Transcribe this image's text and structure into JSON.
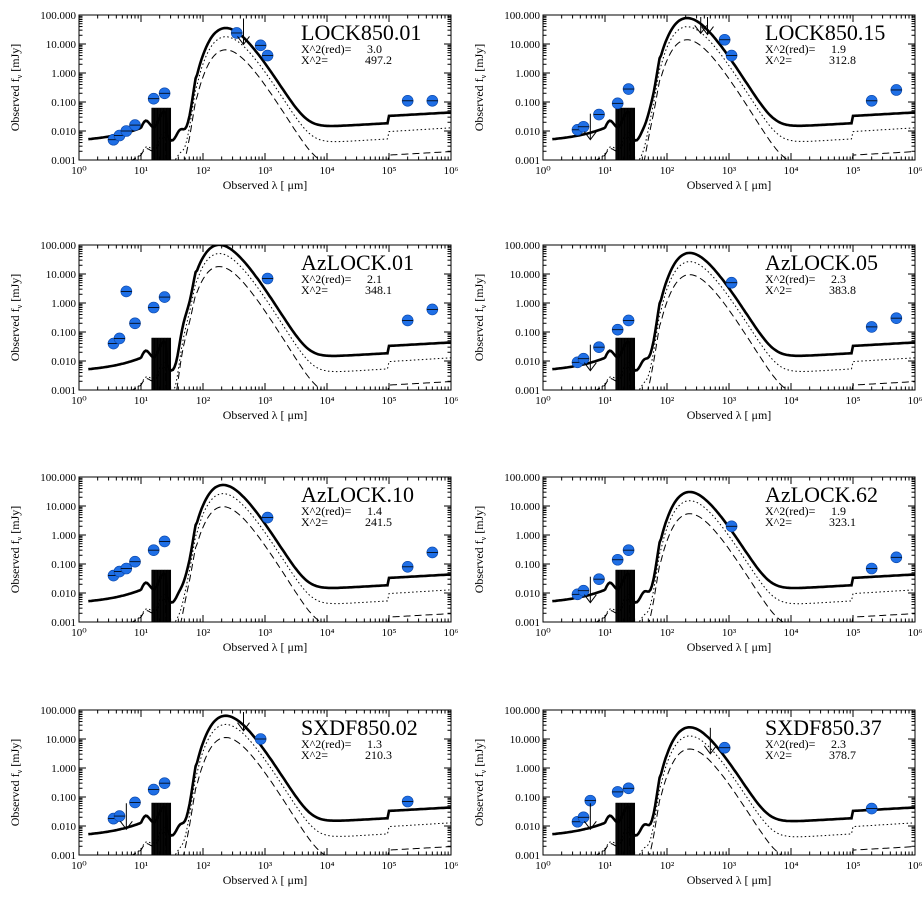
{
  "figure": {
    "xlabel_text": "Observed  λ [ μm]",
    "ylabel_text": "Observed f",
    "ylabel_sub": "ν",
    "ylabel_unit": " [mJy]",
    "chi_red_prefix": "X^2(red)=",
    "chi_prefix": "X^2=",
    "x_tick_labels": [
      "10⁰",
      "10¹",
      "10²",
      "10³",
      "10⁴",
      "10⁵",
      "10⁶"
    ],
    "y_tick_labels": [
      "0.001",
      "0.010",
      "0.100",
      "1.000",
      "10.000",
      "100.000"
    ],
    "point_color": "#1f6fe6"
  },
  "chart_data": [
    {
      "type": "line",
      "title": "LOCK850.01",
      "chi2_red": "3.0",
      "chi2": "497.2",
      "xscale": "log",
      "yscale": "log",
      "xlim": [
        1,
        1000000
      ],
      "ylim": [
        0.001,
        100
      ],
      "xlabel": "Observed λ [μm]",
      "ylabel": "Observed f_ν [mJy]",
      "peak": 28,
      "peak_lambda": 330,
      "series": [
        {
          "values": [
            [
              3.6,
              0.005
            ],
            [
              4.5,
              0.007
            ],
            [
              5.8,
              0.01
            ],
            [
              8,
              0.016
            ],
            [
              16,
              0.13
            ],
            [
              24,
              0.2
            ],
            [
              350,
              24
            ],
            [
              850,
              9
            ],
            [
              1100,
              4
            ],
            [
              200000,
              0.11
            ],
            [
              500000,
              0.11
            ]
          ]
        }
      ],
      "upper_limits": [
        [
          450,
          25
        ]
      ]
    },
    {
      "type": "line",
      "title": "LOCK850.15",
      "chi2_red": "1.9",
      "chi2": "312.8",
      "xscale": "log",
      "yscale": "log",
      "xlim": [
        1,
        1000000
      ],
      "ylim": [
        0.001,
        100
      ],
      "xlabel": "Observed λ [μm]",
      "ylabel": "Observed f_ν [mJy]",
      "peak": 62,
      "peak_lambda": 300,
      "series": [
        {
          "values": [
            [
              3.6,
              0.011
            ],
            [
              4.5,
              0.014
            ],
            [
              8,
              0.037
            ],
            [
              16,
              0.09
            ],
            [
              24,
              0.28
            ],
            [
              850,
              14
            ],
            [
              1100,
              4
            ],
            [
              200000,
              0.11
            ],
            [
              500000,
              0.26
            ]
          ]
        }
      ],
      "upper_limits": [
        [
          5.8,
          0.013
        ],
        [
          350,
          60
        ],
        [
          450,
          55
        ]
      ]
    },
    {
      "type": "line",
      "title": "AzLOCK.01",
      "chi2_red": "2.1",
      "chi2": "348.1",
      "xscale": "log",
      "yscale": "log",
      "xlim": [
        1,
        1000000
      ],
      "ylim": [
        0.001,
        100
      ],
      "xlabel": "Observed λ [μm]",
      "ylabel": "Observed f_ν [mJy]",
      "peak": 80,
      "peak_lambda": 260,
      "series": [
        {
          "values": [
            [
              3.6,
              0.04
            ],
            [
              4.5,
              0.06
            ],
            [
              5.8,
              2.5
            ],
            [
              8,
              0.2
            ],
            [
              16,
              0.7
            ],
            [
              24,
              1.6
            ],
            [
              1100,
              7
            ],
            [
              200000,
              0.25
            ],
            [
              500000,
              0.6
            ]
          ]
        }
      ],
      "upper_limits": []
    },
    {
      "type": "line",
      "title": "AzLOCK.05",
      "chi2_red": "2.3",
      "chi2": "383.8",
      "xscale": "log",
      "yscale": "log",
      "xlim": [
        1,
        1000000
      ],
      "ylim": [
        0.001,
        100
      ],
      "xlabel": "Observed λ [μm]",
      "ylabel": "Observed f_ν [mJy]",
      "peak": 42,
      "peak_lambda": 330,
      "series": [
        {
          "values": [
            [
              3.6,
              0.009
            ],
            [
              4.5,
              0.012
            ],
            [
              8,
              0.03
            ],
            [
              16,
              0.12
            ],
            [
              24,
              0.25
            ],
            [
              1100,
              5
            ],
            [
              200000,
              0.15
            ],
            [
              500000,
              0.3
            ]
          ]
        }
      ],
      "upper_limits": [
        [
          5.8,
          0.012
        ]
      ]
    },
    {
      "type": "line",
      "title": "AzLOCK.10",
      "chi2_red": "1.4",
      "chi2": "241.5",
      "xscale": "log",
      "yscale": "log",
      "xlim": [
        1,
        1000000
      ],
      "ylim": [
        0.001,
        100
      ],
      "xlabel": "Observed λ [μm]",
      "ylabel": "Observed f_ν [mJy]",
      "peak": 42,
      "peak_lambda": 300,
      "series": [
        {
          "values": [
            [
              3.6,
              0.04
            ],
            [
              4.5,
              0.055
            ],
            [
              5.8,
              0.07
            ],
            [
              8,
              0.12
            ],
            [
              16,
              0.3
            ],
            [
              24,
              0.6
            ],
            [
              1100,
              4
            ],
            [
              200000,
              0.08
            ],
            [
              500000,
              0.25
            ]
          ]
        }
      ],
      "upper_limits": []
    },
    {
      "type": "line",
      "title": "AzLOCK.62",
      "chi2_red": "1.9",
      "chi2": "323.1",
      "xscale": "log",
      "yscale": "log",
      "xlim": [
        1,
        1000000
      ],
      "ylim": [
        0.001,
        100
      ],
      "xlabel": "Observed λ [μm]",
      "ylabel": "Observed f_ν [mJy]",
      "peak": 24,
      "peak_lambda": 330,
      "series": [
        {
          "values": [
            [
              3.6,
              0.009
            ],
            [
              4.5,
              0.012
            ],
            [
              8,
              0.03
            ],
            [
              16,
              0.14
            ],
            [
              24,
              0.3
            ],
            [
              1100,
              2
            ],
            [
              200000,
              0.07
            ],
            [
              500000,
              0.17
            ]
          ]
        }
      ],
      "upper_limits": [
        [
          5.8,
          0.012
        ]
      ]
    },
    {
      "type": "line",
      "title": "SXDF850.02",
      "chi2_red": "1.3",
      "chi2": "210.3",
      "xscale": "log",
      "yscale": "log",
      "xlim": [
        1,
        1000000
      ],
      "ylim": [
        0.001,
        100
      ],
      "xlabel": "Observed λ [μm]",
      "ylabel": "Observed f_ν [mJy]",
      "peak": 50,
      "peak_lambda": 330,
      "series": [
        {
          "values": [
            [
              3.6,
              0.018
            ],
            [
              4.5,
              0.022
            ],
            [
              8,
              0.065
            ],
            [
              16,
              0.18
            ],
            [
              24,
              0.3
            ],
            [
              850,
              10
            ],
            [
              200000,
              0.07
            ]
          ]
        }
      ],
      "upper_limits": [
        [
          5.8,
          0.02
        ],
        [
          450,
          50
        ]
      ]
    },
    {
      "type": "line",
      "title": "SXDF850.37",
      "chi2_red": "2.3",
      "chi2": "378.7",
      "xscale": "log",
      "yscale": "log",
      "xlim": [
        1,
        1000000
      ],
      "ylim": [
        0.001,
        100
      ],
      "xlabel": "Observed λ [μm]",
      "ylabel": "Observed f_ν [mJy]",
      "peak": 20,
      "peak_lambda": 330,
      "series": [
        {
          "values": [
            [
              3.6,
              0.014
            ],
            [
              4.5,
              0.02
            ],
            [
              5.8,
              0.075
            ],
            [
              16,
              0.15
            ],
            [
              24,
              0.2
            ],
            [
              850,
              5
            ],
            [
              200000,
              0.04
            ]
          ]
        }
      ],
      "upper_limits": [
        [
          5.8,
          0.02
        ],
        [
          500,
          8
        ]
      ]
    }
  ]
}
